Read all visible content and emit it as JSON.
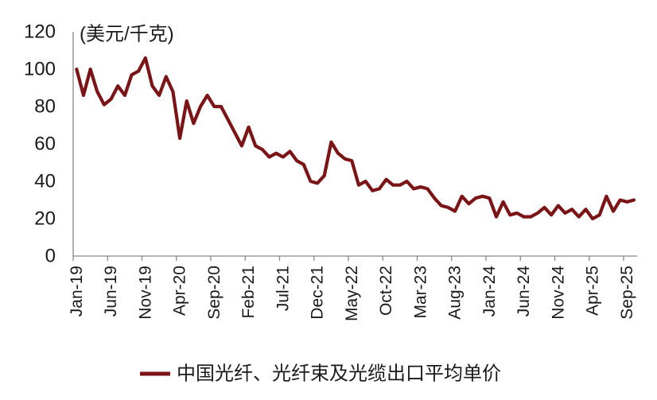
{
  "chart_data": {
    "type": "line",
    "ylabel": "(美元/千克)",
    "ylim": [
      0,
      120
    ],
    "yticks": [
      0,
      20,
      40,
      60,
      80,
      100,
      120
    ],
    "x_tick_labels": [
      "Jan-19",
      "Jun-19",
      "Nov-19",
      "Apr-20",
      "Sep-20",
      "Feb-21",
      "Jul-21",
      "Dec-21",
      "May-22",
      "Oct-22",
      "Mar-23",
      "Aug-23",
      "Jan-24",
      "Jun-24",
      "Nov-24",
      "Apr-25",
      "Sep-25"
    ],
    "grid": false,
    "legend": "bottom",
    "series": [
      {
        "name": "中国光纤、光纤束及光缆出口平均单价",
        "color": "#7b1416",
        "values": [
          100,
          86,
          100,
          88,
          81,
          84,
          91,
          86,
          97,
          99,
          106,
          91,
          86,
          96,
          88,
          63,
          83,
          71,
          80,
          86,
          80,
          80,
          73,
          66,
          59,
          69,
          59,
          57,
          53,
          55,
          53,
          56,
          51,
          49,
          40,
          39,
          43,
          61,
          55,
          52,
          51,
          38,
          40,
          35,
          36,
          41,
          38,
          38,
          40,
          36,
          37,
          36,
          31,
          27,
          26,
          24,
          32,
          28,
          31,
          32,
          31,
          21,
          29,
          22,
          23,
          21,
          21,
          23,
          26,
          22,
          27,
          23,
          25,
          21,
          25,
          20,
          22,
          32,
          24,
          30,
          29,
          30
        ]
      }
    ]
  }
}
